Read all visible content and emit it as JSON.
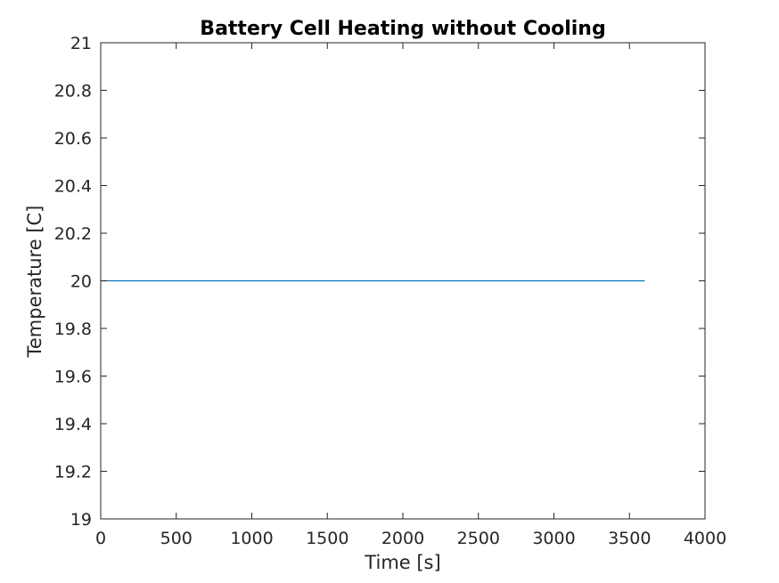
{
  "chart_data": {
    "type": "line",
    "title": "Battery Cell Heating without Cooling",
    "xlabel": "Time [s]",
    "ylabel": "Temperature [C]",
    "xlim": [
      0,
      4000
    ],
    "ylim": [
      19,
      21
    ],
    "xticks": [
      0,
      500,
      1000,
      1500,
      2000,
      2500,
      3000,
      3500,
      4000
    ],
    "yticks": [
      19,
      19.2,
      19.4,
      19.6,
      19.8,
      20,
      20.2,
      20.4,
      20.6,
      20.8,
      21
    ],
    "xtick_labels": [
      "0",
      "500",
      "1000",
      "1500",
      "2000",
      "2500",
      "3000",
      "3500",
      "4000"
    ],
    "ytick_labels": [
      "19",
      "19.2",
      "19.4",
      "19.6",
      "19.8",
      "20",
      "20.2",
      "20.4",
      "20.6",
      "20.8",
      "21"
    ],
    "grid": false,
    "series": [
      {
        "color": "#0072BD",
        "x": [
          0,
          3600
        ],
        "y": [
          20,
          20
        ]
      }
    ]
  }
}
